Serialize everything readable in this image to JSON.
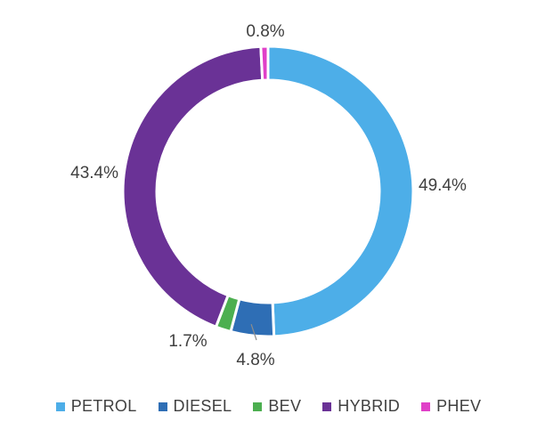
{
  "chart_data": {
    "type": "pie",
    "variant": "donut",
    "categories": [
      "PETROL",
      "DIESEL",
      "BEV",
      "HYBRID",
      "PHEV"
    ],
    "values": [
      49.4,
      4.8,
      1.7,
      43.4,
      0.8
    ],
    "labels": [
      "49.4%",
      "4.8%",
      "1.7%",
      "43.4%",
      "0.8%"
    ],
    "colors": [
      "#4daee8",
      "#2e6eb5",
      "#4caf50",
      "#6a3296",
      "#e040c8"
    ],
    "legend_position": "bottom",
    "title": ""
  }
}
